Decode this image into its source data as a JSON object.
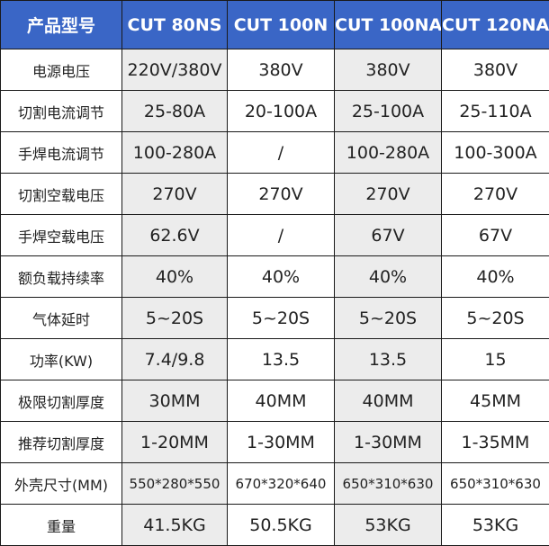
{
  "header": [
    "产品型号",
    "CUT 80NS",
    "CUT 100N",
    "CUT 100NA",
    "CUT 120NA"
  ],
  "rows": [
    {
      "label": "电源电压",
      "values": [
        "220V/380V",
        "380V",
        "380V",
        "380V"
      ]
    },
    {
      "label": "切割电流调节",
      "values": [
        "25-80A",
        "20-100A",
        "25-100A",
        "25-110A"
      ]
    },
    {
      "label": "手焊电流调节",
      "values": [
        "100-280A",
        "/",
        "100-280A",
        "100-300A"
      ]
    },
    {
      "label": "切割空载电压",
      "values": [
        "270V",
        "270V",
        "270V",
        "270V"
      ]
    },
    {
      "label": "手焊空载电压",
      "values": [
        "62.6V",
        "/",
        "67V",
        "67V"
      ]
    },
    {
      "label": "额负载持续率",
      "values": [
        "40%",
        "40%",
        "40%",
        "40%"
      ]
    },
    {
      "label": "气体延时",
      "values": [
        "5~20S",
        "5~20S",
        "5~20S",
        "5~20S"
      ]
    },
    {
      "label": "功率(KW)",
      "values": [
        "7.4/9.8",
        "13.5",
        "13.5",
        "15"
      ]
    },
    {
      "label": "极限切割厚度",
      "values": [
        "30MM",
        "40MM",
        "40MM",
        "45MM"
      ]
    },
    {
      "label": "推荐切割厚度",
      "values": [
        "1-20MM",
        "1-30MM",
        "1-30MM",
        "1-35MM"
      ]
    },
    {
      "label": "外壳尺寸(MM)",
      "values": [
        "550*280*550",
        "670*320*640",
        "650*310*630",
        "650*310*630"
      ]
    },
    {
      "label": "重量",
      "values": [
        "41.5KG",
        "50.5KG",
        "53KG",
        "53KG"
      ]
    }
  ],
  "colors": {
    "header_bg": "#3a66c6",
    "header_text": "#ffffff",
    "shaded_column_bg": "#ececec",
    "border": "#1a1a1a"
  }
}
